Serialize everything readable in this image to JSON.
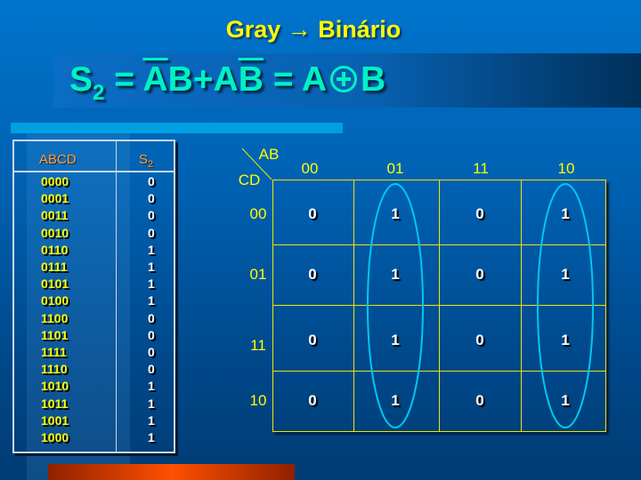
{
  "title": "Gray → Binário",
  "formula": {
    "lhs": "S",
    "lhs_sub": "2",
    "eq": "=",
    "t1_bar": "A",
    "t1": "B",
    "plus": "+",
    "t2": "A",
    "t2_bar": "B",
    "eq2": "=",
    "a": "A",
    "b": "B",
    "op_icon": "xor-circle-plus"
  },
  "table": {
    "headers": [
      "ABCD",
      "S",
      "2"
    ],
    "rows": [
      [
        "0000",
        "0"
      ],
      [
        "0001",
        "0"
      ],
      [
        "0011",
        "0"
      ],
      [
        "0010",
        "0"
      ],
      [
        "0110",
        "1"
      ],
      [
        "0111",
        "1"
      ],
      [
        "0101",
        "1"
      ],
      [
        "0100",
        "1"
      ],
      [
        "1100",
        "0"
      ],
      [
        "1101",
        "0"
      ],
      [
        "1111",
        "0"
      ],
      [
        "1110",
        "0"
      ],
      [
        "1010",
        "1"
      ],
      [
        "1011",
        "1"
      ],
      [
        "1001",
        "1"
      ],
      [
        "1000",
        "1"
      ]
    ]
  },
  "kmap": {
    "col_var": "AB",
    "row_var": "CD",
    "cols": [
      "00",
      "01",
      "11",
      "10"
    ],
    "rows": [
      "00",
      "01",
      "11",
      "10"
    ],
    "cells": [
      [
        "0",
        "1",
        "0",
        "1"
      ],
      [
        "0",
        "1",
        "0",
        "1"
      ],
      [
        "0",
        "1",
        "0",
        "1"
      ],
      [
        "0",
        "1",
        "0",
        "1"
      ]
    ],
    "groups": [
      "AB=01",
      "AB=10"
    ],
    "group_color": "#00c8f0"
  }
}
